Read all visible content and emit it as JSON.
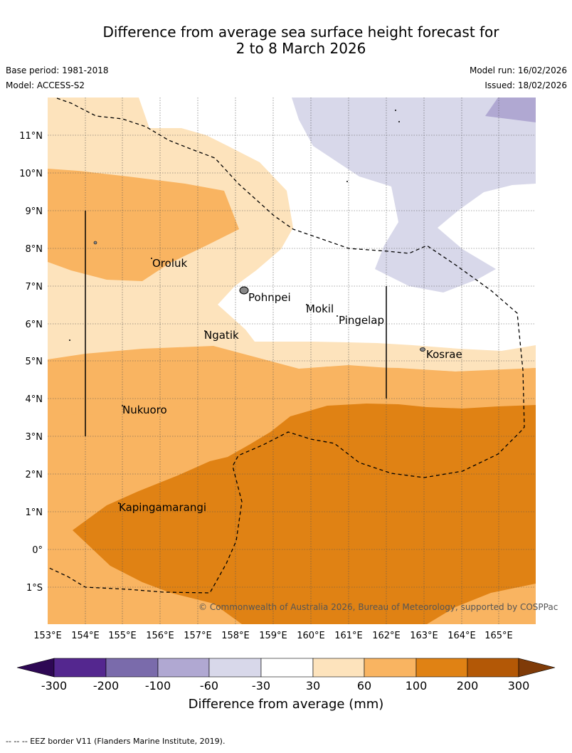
{
  "header": {
    "title_line1": "Difference from average sea surface height forecast for",
    "title_line2": "2 to 8 March 2026",
    "base_period": "Base period: 1981-2018",
    "model": "Model: ACCESS-S2",
    "model_run": "Model run: 16/02/2026",
    "issued": "Issued: 18/02/2026"
  },
  "map": {
    "lat_labels": [
      "11°N",
      "10°N",
      "9°N",
      "8°N",
      "7°N",
      "6°N",
      "5°N",
      "4°N",
      "3°N",
      "2°N",
      "1°N",
      "0°",
      "1°S"
    ],
    "lon_labels": [
      "153°E",
      "154°E",
      "155°E",
      "156°E",
      "157°E",
      "158°E",
      "159°E",
      "160°E",
      "161°E",
      "162°E",
      "163°E",
      "164°E",
      "165°E"
    ],
    "places": {
      "oroluk": "Oroluk",
      "pohnpei": "Pohnpei",
      "mokil": "Mokil",
      "pingelap": "Pingelap",
      "ngatik": "Ngatik",
      "kosrae": "Kosrae",
      "nukuoro": "Nukuoro",
      "kapingamarangi": "Kapingamarangi"
    },
    "copyright": "© Commonwealth of Australia 2026, Bureau of Meteorology, supported by COSPPac"
  },
  "colorbar": {
    "labels": [
      "-300",
      "-200",
      "-100",
      "-60",
      "-30",
      "30",
      "60",
      "100",
      "200",
      "300"
    ],
    "title": "Difference from average (mm)",
    "colors": {
      "below_min": "#2e0854",
      "neg300_200": "#54278f",
      "neg200_100": "#7a6bab",
      "neg100_60": "#b0a8d2",
      "neg60_30": "#d8d8ea",
      "neg30_30": "#ffffff",
      "p30_60": "#fde3bc",
      "p60_100": "#f9b461",
      "p100_200": "#e08214",
      "p200_300": "#b35806",
      "above_max": "#7f3b08"
    }
  },
  "footer": {
    "eez_note": "--  --  -- EEZ border V11 (Flanders Marine Institute, 2019)."
  }
}
